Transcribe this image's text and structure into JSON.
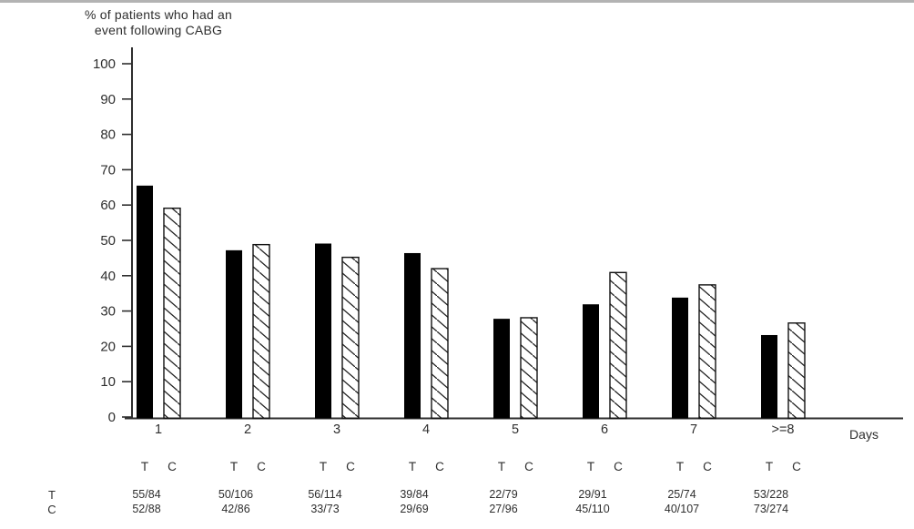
{
  "title": {
    "line1": "% of patients who had an",
    "line2": "event following CABG"
  },
  "chart_data": {
    "type": "bar",
    "title": "% of patients who had an event following CABG",
    "xlabel": "Days",
    "ylabel": "% of patients who had an event following CABG",
    "ylim": [
      0,
      100
    ],
    "ytick_step": 10,
    "grid": false,
    "legend_position": "none",
    "categories": [
      "1",
      "2",
      "3",
      "4",
      "5",
      "6",
      "7",
      ">=8"
    ],
    "series": [
      {
        "name": "T",
        "style": "solid",
        "values": [
          65.5,
          47.2,
          49.1,
          46.4,
          27.8,
          31.9,
          33.8,
          23.2
        ],
        "fractions": [
          "55/84",
          "50/106",
          "56/114",
          "39/84",
          "22/79",
          "29/91",
          "25/74",
          "53/228"
        ]
      },
      {
        "name": "C",
        "style": "hatched",
        "values": [
          59.1,
          48.8,
          45.2,
          42.0,
          28.1,
          40.9,
          37.4,
          26.6
        ],
        "fractions": [
          "52/88",
          "42/86",
          "33/73",
          "29/69",
          "27/96",
          "45/110",
          "40/107",
          "73/274"
        ]
      }
    ]
  },
  "colors": {
    "background": "#ffffff",
    "bar_fill": "#000000",
    "hatch_stroke": "#222222",
    "bar_outline": "#111111",
    "axis": "#2e2e2e",
    "text": "#2e2e2e"
  }
}
